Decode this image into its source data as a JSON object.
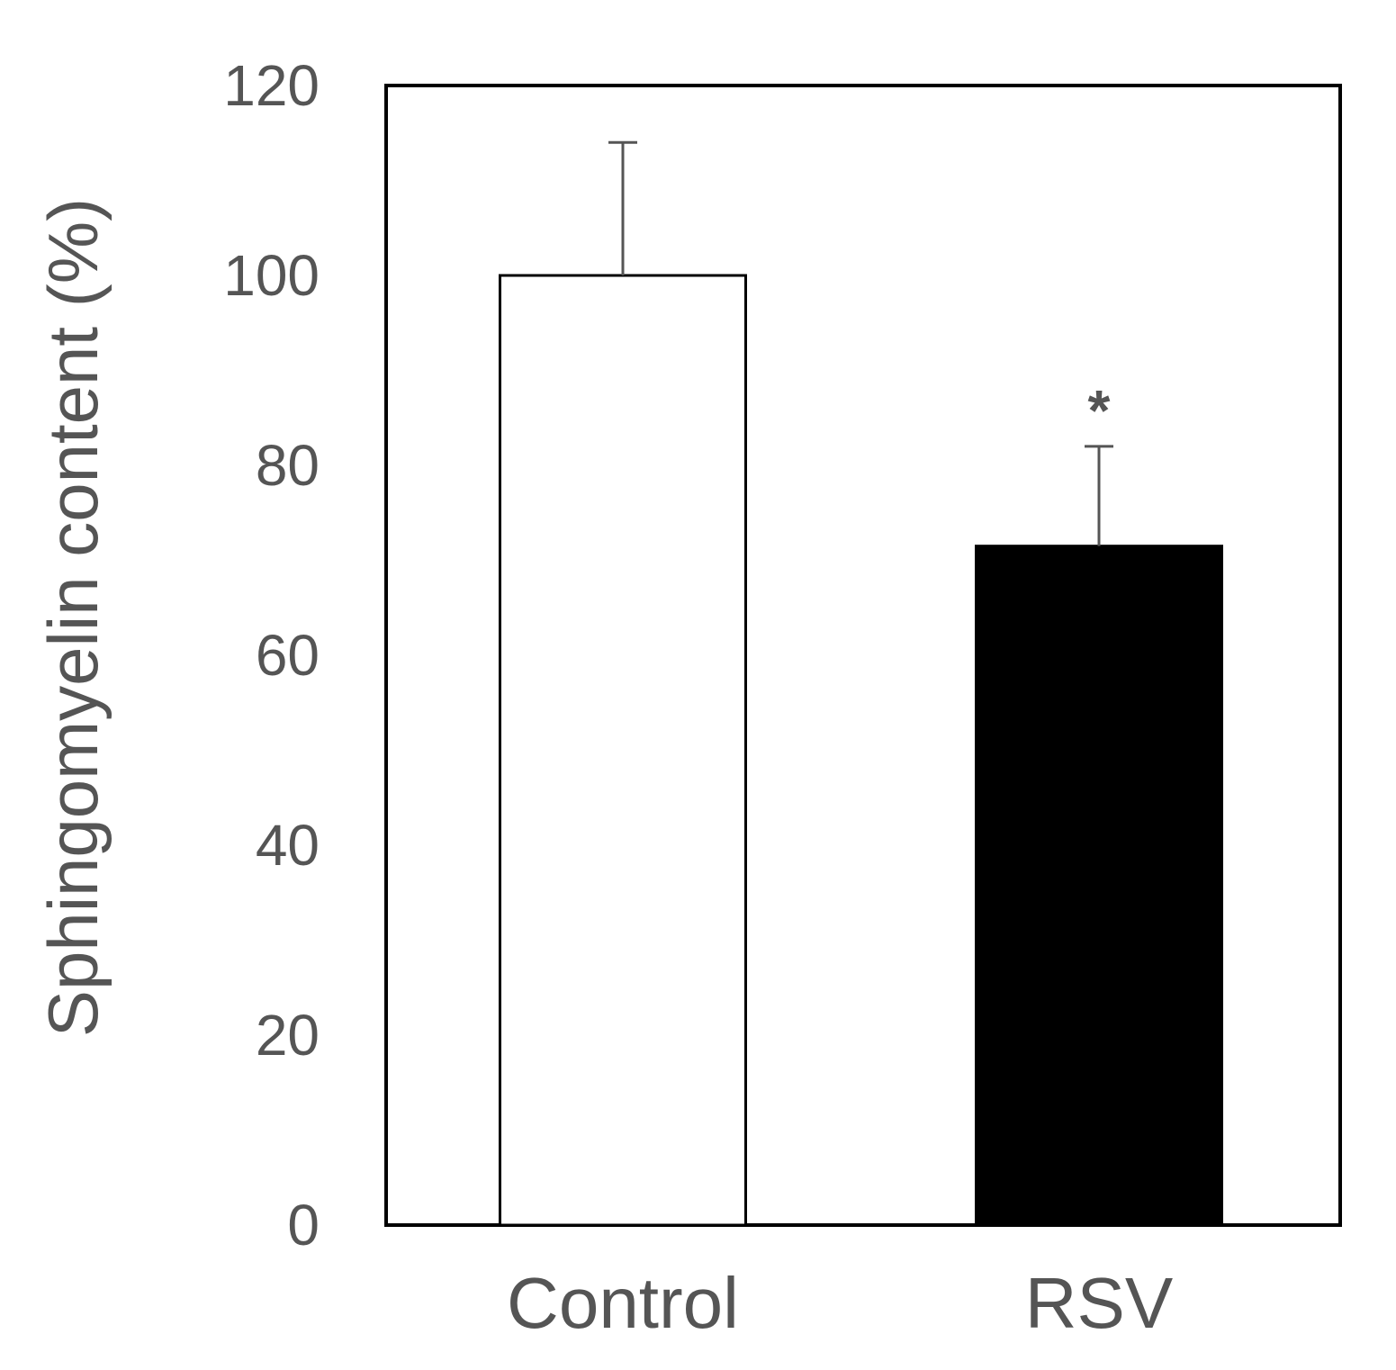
{
  "chart_data": {
    "type": "bar",
    "title": "",
    "xlabel": "",
    "ylabel": "Sphingomyelin content (%)",
    "ylim": [
      0,
      120
    ],
    "yticks": [
      0,
      20,
      40,
      60,
      80,
      100,
      120
    ],
    "categories": [
      "Control",
      "RSV"
    ],
    "values": [
      100,
      71.5
    ],
    "errors": [
      14,
      10.5
    ],
    "bar_fill": [
      "#ffffff",
      "#000000"
    ],
    "bar_stroke": "#000000",
    "annotations": [
      {
        "category": "RSV",
        "text": "*"
      }
    ],
    "grid": false,
    "legend": "none"
  }
}
